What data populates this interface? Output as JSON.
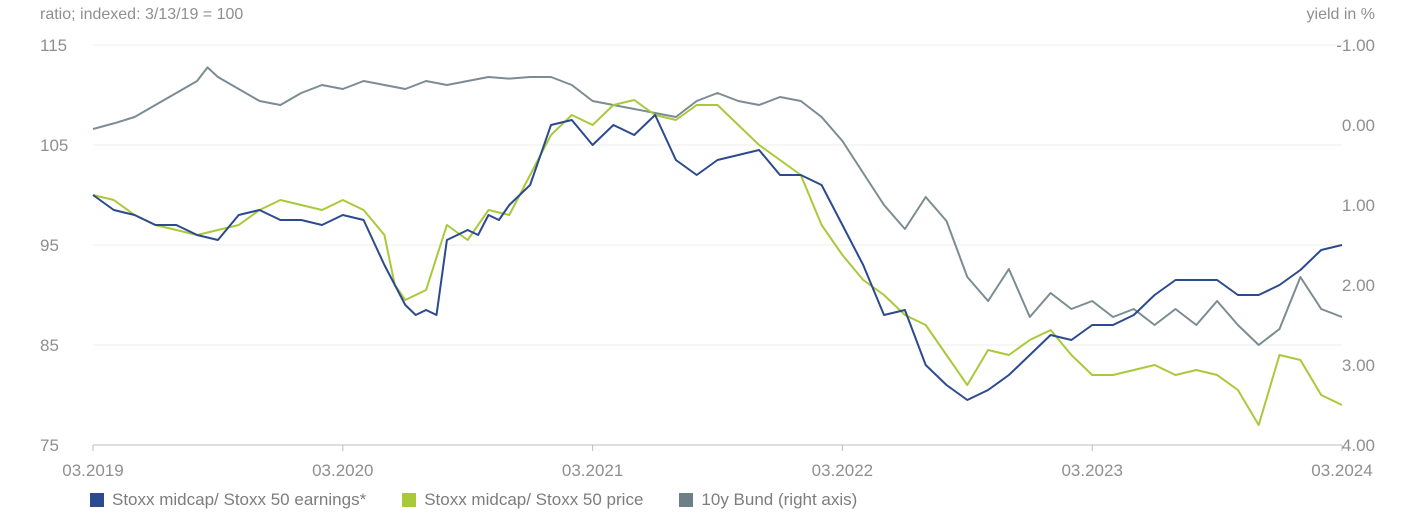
{
  "chart_data": {
    "type": "line",
    "left_axis_label": "ratio; indexed: 3/13/19 = 100",
    "right_axis_label": "yield in %",
    "ylim_left": [
      75,
      115
    ],
    "ylim_right": [
      4.0,
      -1.0
    ],
    "left_ticks": [
      "115",
      "105",
      "95",
      "85",
      "75"
    ],
    "right_ticks": [
      "-1.00",
      "0.00",
      "1.00",
      "2.00",
      "3.00",
      "4.00"
    ],
    "x_ticks": [
      "03.2019",
      "03.2020",
      "03.2021",
      "03.2022",
      "03.2023",
      "03.2024"
    ],
    "xlim": [
      0,
      60
    ],
    "series": [
      {
        "name": "Stoxx midcap/ Stoxx 50 earnings*",
        "axis": "left",
        "color": "#2c4a8f",
        "x": [
          0,
          1,
          2,
          3,
          4,
          5,
          6,
          7,
          8,
          9,
          10,
          11,
          12,
          13,
          14,
          15,
          15.5,
          16,
          16.5,
          17,
          17.5,
          18,
          18.5,
          19,
          19.5,
          20,
          21,
          22,
          23,
          24,
          25,
          26,
          27,
          28,
          29,
          30,
          31,
          32,
          33,
          34,
          35,
          36,
          37,
          38,
          39,
          40,
          41,
          42,
          42.5,
          43,
          44,
          45,
          46,
          47,
          48,
          49,
          50,
          51,
          52,
          53,
          54,
          55,
          56,
          57,
          58,
          59,
          60
        ],
        "values": [
          100,
          98.5,
          98,
          97,
          97,
          96,
          95.5,
          98,
          98.5,
          97.5,
          97.5,
          97,
          98,
          97.5,
          93,
          89,
          88,
          88.5,
          88,
          95.5,
          96,
          96.5,
          96,
          98,
          97.5,
          99,
          101,
          107,
          107.5,
          105,
          107,
          106,
          108,
          103.5,
          102,
          103.5,
          104,
          104.5,
          102,
          102,
          101,
          97,
          93,
          88,
          88.5,
          83,
          81,
          79.5,
          80,
          80.5,
          82,
          84,
          86,
          85.5,
          87,
          87,
          88,
          90,
          91.5,
          91.5,
          91.5,
          90,
          90,
          91,
          92.5,
          94.5,
          95
        ]
      },
      {
        "name": "Stoxx midcap/ Stoxx 50 price",
        "axis": "left",
        "color": "#a9c93a",
        "x": [
          0,
          1,
          2,
          3,
          4,
          5,
          6,
          7,
          8,
          9,
          10,
          11,
          12,
          13,
          14,
          14.5,
          15,
          16,
          17,
          18,
          19,
          20,
          21,
          22,
          23,
          24,
          25,
          26,
          27,
          28,
          29,
          30,
          31,
          32,
          33,
          34,
          35,
          36,
          37,
          38,
          39,
          40,
          41,
          42,
          43,
          44,
          45,
          46,
          47,
          48,
          49,
          50,
          51,
          52,
          53,
          54,
          55,
          56,
          57,
          58,
          59,
          60
        ],
        "values": [
          100,
          99.5,
          98,
          97,
          96.5,
          96,
          96.5,
          97,
          98.5,
          99.5,
          99,
          98.5,
          99.5,
          98.5,
          96,
          91,
          89.5,
          90.5,
          97,
          95.5,
          98.5,
          98,
          102,
          106,
          108,
          107,
          109,
          109.5,
          108,
          107.5,
          109,
          109,
          107,
          105,
          103.5,
          102,
          97,
          94,
          91.5,
          90,
          88,
          87,
          84,
          81,
          84.5,
          84,
          85.5,
          86.5,
          84,
          82,
          82,
          82.5,
          83,
          82,
          82.5,
          82,
          80.5,
          77,
          84,
          83.5,
          80,
          79
        ]
      },
      {
        "name": "10y Bund (right axis)",
        "axis": "right",
        "color": "#7b8c92",
        "x": [
          0,
          1,
          2,
          3,
          4,
          5,
          5.5,
          6,
          7,
          8,
          9,
          10,
          11,
          12,
          13,
          14,
          15,
          16,
          17,
          18,
          19,
          20,
          21,
          22,
          23,
          24,
          25,
          26,
          27,
          28,
          29,
          30,
          31,
          32,
          33,
          34,
          35,
          36,
          37,
          38,
          39,
          40,
          41,
          42,
          43,
          44,
          45,
          46,
          47,
          48,
          49,
          50,
          51,
          52,
          53,
          54,
          55,
          56,
          57,
          58,
          59,
          60
        ],
        "values": [
          0.05,
          -0.02,
          -0.1,
          -0.25,
          -0.4,
          -0.55,
          -0.72,
          -0.6,
          -0.45,
          -0.3,
          -0.25,
          -0.4,
          -0.5,
          -0.45,
          -0.55,
          -0.5,
          -0.45,
          -0.55,
          -0.5,
          -0.55,
          -0.6,
          -0.58,
          -0.6,
          -0.6,
          -0.5,
          -0.3,
          -0.25,
          -0.2,
          -0.15,
          -0.1,
          -0.3,
          -0.4,
          -0.3,
          -0.25,
          -0.35,
          -0.3,
          -0.1,
          0.2,
          0.6,
          1.0,
          1.3,
          0.9,
          1.2,
          1.9,
          2.2,
          1.8,
          2.4,
          2.1,
          2.3,
          2.2,
          2.4,
          2.3,
          2.5,
          2.3,
          2.5,
          2.2,
          2.5,
          2.75,
          2.55,
          1.9,
          2.3,
          2.4
        ]
      }
    ]
  }
}
